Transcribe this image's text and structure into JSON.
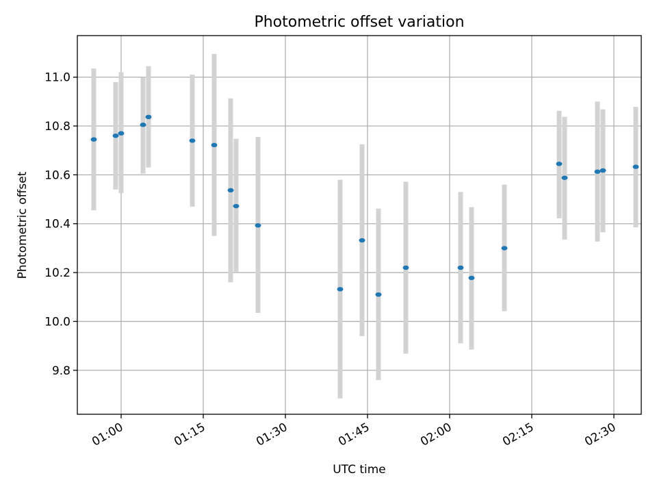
{
  "chart_data": {
    "type": "scatter",
    "title": "Photometric offset variation",
    "xlabel": "UTC time",
    "ylabel": "Photometric offset",
    "grid": true,
    "xlim": [
      "00:52",
      "02:35"
    ],
    "ylim": [
      9.62,
      11.17
    ],
    "x_ticks": [
      "01:00",
      "01:15",
      "01:30",
      "01:45",
      "02:00",
      "02:15",
      "02:30"
    ],
    "y_ticks": [
      "9.8",
      "10.0",
      "10.2",
      "10.4",
      "10.6",
      "10.8",
      "11.0"
    ],
    "colors": {
      "point": "#1f77b4",
      "errorbar": "#d3d3d3",
      "grid": "#b0b0b0"
    },
    "points": [
      {
        "x": "00:55",
        "y": 10.745,
        "ylow": 10.455,
        "yhigh": 11.035
      },
      {
        "x": "00:59",
        "y": 10.76,
        "ylow": 10.54,
        "yhigh": 10.98
      },
      {
        "x": "01:00",
        "y": 10.77,
        "ylow": 10.525,
        "yhigh": 11.02
      },
      {
        "x": "01:04",
        "y": 10.805,
        "ylow": 10.605,
        "yhigh": 11.0
      },
      {
        "x": "01:05",
        "y": 10.837,
        "ylow": 10.63,
        "yhigh": 11.045
      },
      {
        "x": "01:13",
        "y": 10.74,
        "ylow": 10.47,
        "yhigh": 11.01
      },
      {
        "x": "01:17",
        "y": 10.722,
        "ylow": 10.35,
        "yhigh": 11.095
      },
      {
        "x": "01:20",
        "y": 10.537,
        "ylow": 10.16,
        "yhigh": 10.913
      },
      {
        "x": "01:21",
        "y": 10.472,
        "ylow": 10.2,
        "yhigh": 10.748
      },
      {
        "x": "01:25",
        "y": 10.393,
        "ylow": 10.035,
        "yhigh": 10.755
      },
      {
        "x": "01:40",
        "y": 10.132,
        "ylow": 9.685,
        "yhigh": 10.58
      },
      {
        "x": "01:44",
        "y": 10.332,
        "ylow": 9.94,
        "yhigh": 10.725
      },
      {
        "x": "01:47",
        "y": 10.11,
        "ylow": 9.76,
        "yhigh": 10.462
      },
      {
        "x": "01:52",
        "y": 10.22,
        "ylow": 9.868,
        "yhigh": 10.572
      },
      {
        "x": "02:02",
        "y": 10.22,
        "ylow": 9.91,
        "yhigh": 10.53
      },
      {
        "x": "02:04",
        "y": 10.178,
        "ylow": 9.885,
        "yhigh": 10.468
      },
      {
        "x": "02:10",
        "y": 10.3,
        "ylow": 10.042,
        "yhigh": 10.56
      },
      {
        "x": "02:20",
        "y": 10.645,
        "ylow": 10.422,
        "yhigh": 10.862
      },
      {
        "x": "02:21",
        "y": 10.588,
        "ylow": 10.335,
        "yhigh": 10.838
      },
      {
        "x": "02:27",
        "y": 10.613,
        "ylow": 10.327,
        "yhigh": 10.9
      },
      {
        "x": "02:28",
        "y": 10.618,
        "ylow": 10.365,
        "yhigh": 10.868
      },
      {
        "x": "02:34",
        "y": 10.633,
        "ylow": 10.385,
        "yhigh": 10.878
      }
    ]
  }
}
